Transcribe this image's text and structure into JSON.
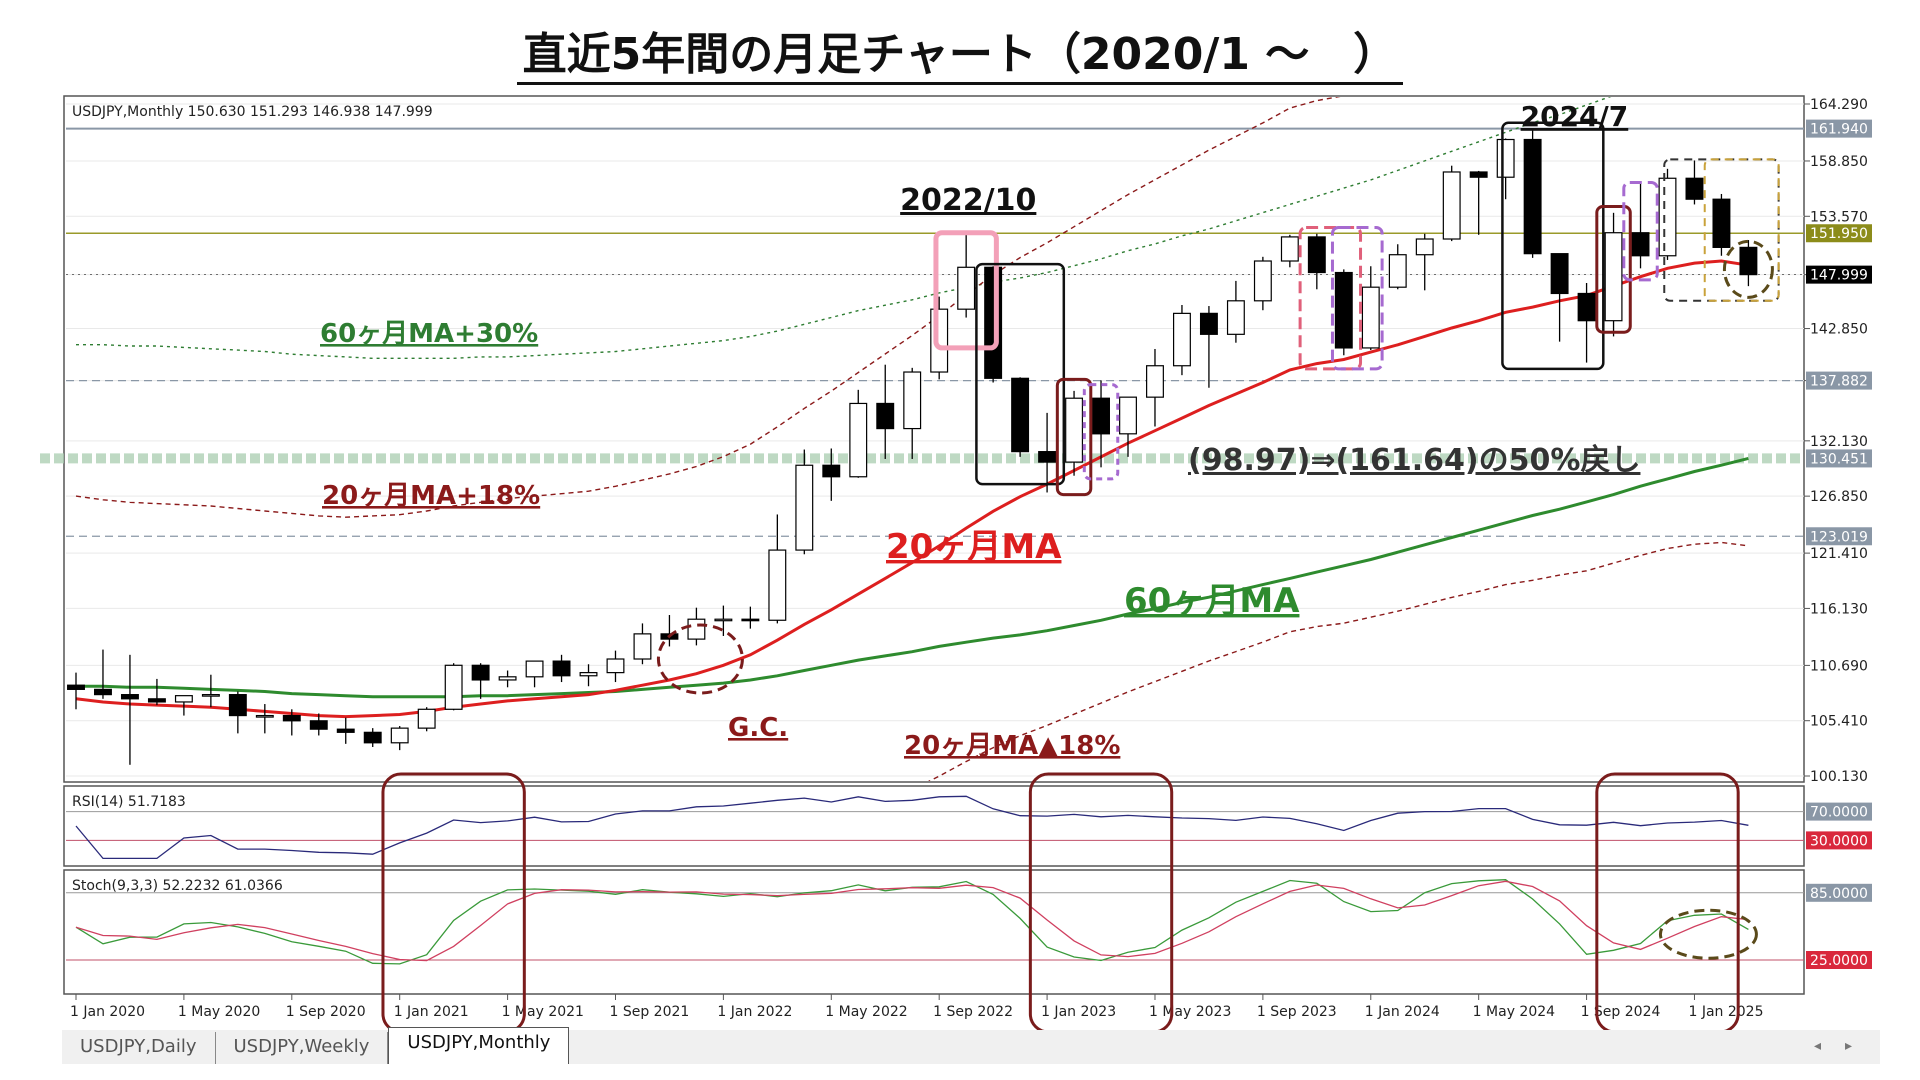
{
  "page_title": "直近5年間の月足チャート（2020/1 〜　）",
  "tabs": [
    {
      "label": "USDJPY,Daily",
      "active": false
    },
    {
      "label": "USDJPY,Weekly",
      "active": false
    },
    {
      "label": "USDJPY,Monthly",
      "active": true
    }
  ],
  "chart_data": {
    "type": "candlestick",
    "header": "USDJPY,Monthly  150.630 151.293 146.938 147.999",
    "ylim": [
      100.13,
      164.29
    ],
    "y_ticks": [
      "164.290",
      "158.850",
      "153.570",
      "147.999",
      "142.850",
      "137.882",
      "132.130",
      "126.850",
      "121.410",
      "116.130",
      "110.690",
      "105.410",
      "100.130"
    ],
    "price_labels": [
      {
        "value": 161.94,
        "text": "161.940",
        "color": "#8a97a6"
      },
      {
        "value": 151.95,
        "text": "151.950",
        "color": "#8c8c1a"
      },
      {
        "value": 147.999,
        "text": "147.999",
        "color": "#000000"
      },
      {
        "value": 137.882,
        "text": "137.882",
        "color": "#8a97a6"
      },
      {
        "value": 130.451,
        "text": "130.451",
        "color": "#8a97a6"
      },
      {
        "value": 123.019,
        "text": "123.019",
        "color": "#8a97a6"
      }
    ],
    "x_labels": [
      "1 Jan 2020",
      "1 May 2020",
      "1 Sep 2020",
      "1 Jan 2021",
      "1 May 2021",
      "1 Sep 2021",
      "1 Jan 2022",
      "1 May 2022",
      "1 Sep 2022",
      "1 Jan 2023",
      "1 May 2023",
      "1 Sep 2023",
      "1 Jan 2024",
      "1 May 2024",
      "1 Sep 2024",
      "1 Jan 2025"
    ],
    "candles": [
      [
        108.8,
        110.0,
        106.5,
        108.4
      ],
      [
        108.4,
        112.2,
        107.5,
        107.9
      ],
      [
        107.9,
        111.7,
        101.2,
        107.5
      ],
      [
        107.5,
        109.4,
        106.9,
        107.2
      ],
      [
        107.2,
        107.7,
        105.9,
        107.8
      ],
      [
        107.8,
        109.8,
        106.7,
        107.9
      ],
      [
        107.9,
        108.2,
        104.2,
        105.9
      ],
      [
        105.9,
        107.0,
        104.2,
        105.9
      ],
      [
        105.9,
        106.5,
        104.0,
        105.4
      ],
      [
        105.4,
        106.1,
        104.0,
        104.6
      ],
      [
        104.6,
        105.7,
        103.2,
        104.3
      ],
      [
        104.3,
        104.7,
        102.9,
        103.3
      ],
      [
        103.3,
        104.9,
        102.6,
        104.7
      ],
      [
        104.7,
        106.7,
        104.4,
        106.5
      ],
      [
        106.5,
        110.9,
        106.4,
        110.7
      ],
      [
        110.7,
        110.9,
        107.5,
        109.3
      ],
      [
        109.3,
        110.2,
        108.6,
        109.6
      ],
      [
        109.6,
        111.1,
        108.6,
        111.1
      ],
      [
        111.1,
        111.7,
        109.1,
        109.7
      ],
      [
        109.7,
        110.8,
        108.7,
        110.0
      ],
      [
        110.0,
        112.1,
        109.1,
        111.3
      ],
      [
        111.3,
        114.7,
        110.8,
        113.7
      ],
      [
        113.7,
        115.5,
        112.5,
        113.2
      ],
      [
        113.2,
        116.2,
        112.6,
        115.1
      ],
      [
        115.1,
        116.4,
        113.5,
        115.1
      ],
      [
        115.1,
        116.3,
        114.2,
        115.0
      ],
      [
        115.0,
        125.1,
        114.7,
        121.7
      ],
      [
        121.7,
        131.3,
        121.3,
        129.8
      ],
      [
        129.8,
        131.4,
        126.4,
        128.7
      ],
      [
        128.7,
        137.0,
        128.6,
        135.7
      ],
      [
        135.7,
        139.4,
        130.4,
        133.3
      ],
      [
        133.3,
        139.1,
        130.4,
        138.7
      ],
      [
        138.7,
        145.9,
        138.0,
        144.7
      ],
      [
        144.7,
        151.9,
        143.9,
        148.7
      ],
      [
        148.7,
        148.8,
        137.7,
        138.1
      ],
      [
        138.1,
        138.2,
        130.6,
        131.1
      ],
      [
        131.1,
        134.8,
        127.2,
        130.1
      ],
      [
        130.1,
        136.9,
        128.8,
        136.2
      ],
      [
        136.2,
        137.9,
        129.6,
        132.8
      ],
      [
        132.8,
        136.3,
        130.6,
        136.3
      ],
      [
        136.3,
        140.9,
        133.5,
        139.3
      ],
      [
        139.3,
        145.1,
        138.4,
        144.3
      ],
      [
        144.3,
        145.0,
        137.2,
        142.3
      ],
      [
        142.3,
        147.4,
        141.5,
        145.5
      ],
      [
        145.5,
        149.7,
        144.6,
        149.3
      ],
      [
        149.3,
        151.8,
        148.7,
        151.6
      ],
      [
        151.6,
        151.9,
        146.6,
        148.2
      ],
      [
        148.2,
        148.5,
        140.3,
        141.0
      ],
      [
        141.0,
        148.8,
        140.8,
        146.8
      ],
      [
        146.8,
        150.9,
        146.6,
        149.9
      ],
      [
        149.9,
        151.9,
        146.5,
        151.4
      ],
      [
        151.4,
        158.4,
        151.2,
        157.8
      ],
      [
        157.8,
        157.9,
        151.8,
        157.3
      ],
      [
        157.3,
        161.0,
        155.2,
        160.9
      ],
      [
        160.9,
        161.9,
        149.6,
        150.0
      ],
      [
        150.0,
        150.0,
        141.6,
        146.2
      ],
      [
        146.2,
        147.2,
        139.6,
        143.6
      ],
      [
        143.6,
        153.9,
        142.1,
        152.0
      ],
      [
        152.0,
        156.8,
        148.6,
        149.8
      ],
      [
        149.8,
        158.1,
        149.4,
        157.2
      ],
      [
        157.2,
        158.9,
        154.7,
        155.2
      ],
      [
        155.2,
        155.7,
        149.8,
        150.6
      ],
      [
        150.6,
        151.3,
        146.9,
        148.0
      ]
    ],
    "ma20": [
      107.5,
      107.2,
      107.0,
      106.9,
      106.8,
      106.7,
      106.5,
      106.3,
      106.1,
      105.9,
      105.8,
      105.9,
      106.0,
      106.3,
      106.7,
      107.0,
      107.3,
      107.5,
      107.7,
      107.9,
      108.3,
      108.8,
      109.3,
      109.9,
      110.7,
      111.7,
      113.1,
      114.6,
      116.0,
      117.5,
      119.0,
      120.5,
      122.1,
      123.8,
      125.4,
      126.8,
      128.0,
      129.3,
      130.6,
      131.9,
      133.1,
      134.3,
      135.5,
      136.6,
      137.7,
      138.9,
      139.5,
      139.9,
      140.6,
      141.3,
      142.1,
      142.9,
      143.6,
      144.4,
      144.9,
      145.5,
      146.0,
      146.9,
      147.8,
      148.6,
      149.1,
      149.3,
      148.9
    ],
    "ma60": [
      108.7,
      108.7,
      108.6,
      108.6,
      108.5,
      108.4,
      108.3,
      108.2,
      108.0,
      107.9,
      107.8,
      107.7,
      107.7,
      107.7,
      107.7,
      107.8,
      107.8,
      107.9,
      108.0,
      108.1,
      108.2,
      108.4,
      108.6,
      108.8,
      109.0,
      109.3,
      109.7,
      110.2,
      110.7,
      111.2,
      111.6,
      112.0,
      112.5,
      112.9,
      113.3,
      113.6,
      114.0,
      114.5,
      115.0,
      115.6,
      116.1,
      116.7,
      117.2,
      117.8,
      118.4,
      119.0,
      119.6,
      120.2,
      120.8,
      121.5,
      122.2,
      122.9,
      123.6,
      124.3,
      125.0,
      125.6,
      126.3,
      127.0,
      127.8,
      128.5,
      129.2,
      129.8,
      130.45
    ],
    "rsi": {
      "label": "RSI(14) 51.7183",
      "levels": [
        "70.0000",
        "30.0000"
      ]
    },
    "stoch": {
      "label": "Stoch(9,3,3) 52.2232 61.0366",
      "levels": [
        "85.0000",
        "25.0000"
      ]
    },
    "annotations": {
      "date_2022": "2022/10",
      "date_2024": "2024/7",
      "ma60_plus30": "60ヶ月MA+30%",
      "ma20_plus18": "20ヶ月MA+18%",
      "ma20": "20ヶ月MA",
      "ma60": "60ヶ月MA",
      "retrace": "(98.97)⇒(161.64)の50%戻し",
      "ma20_minus18": "20ヶ月MA▲18%",
      "gc": "G.C."
    },
    "colors": {
      "ma20": "#dd1f1f",
      "ma60": "#2e8b2e",
      "envelope_green": "#2e7d32",
      "envelope_red": "#8b1a1a",
      "annot_dark_red": "#7a1c1c"
    }
  }
}
